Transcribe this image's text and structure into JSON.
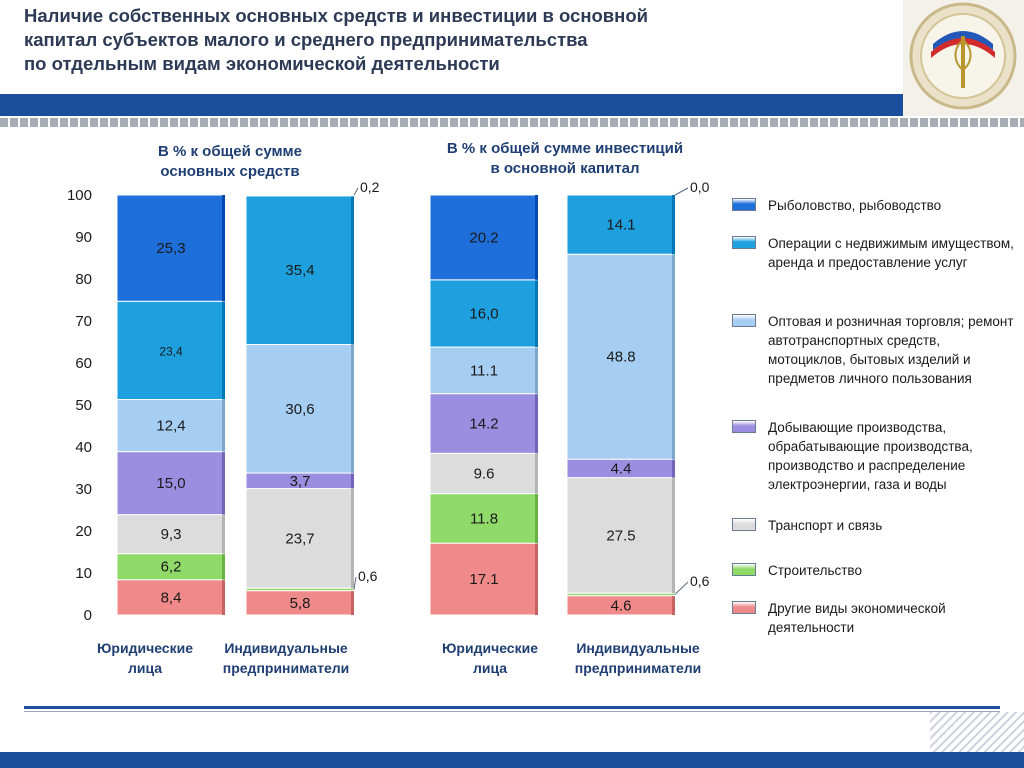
{
  "title_lines": [
    "Наличие собственных основных средств и инвестиции в основной",
    "капитал субъектов малого и среднего предпринимательства",
    "по отдельным видам экономической деятельности"
  ],
  "subtitles": {
    "assets": [
      "В % к общей сумме",
      "основных средств"
    ],
    "investments": [
      "В % к общей сумме инвестиций",
      "в основной капитал"
    ]
  },
  "logo": {
    "icon": "emblem-icon"
  },
  "colors": {
    "fishing": "#1e6fd9",
    "realestate": "#1ea0df",
    "trade": "#a6cdf2",
    "industry": "#9b8ee0",
    "transport": "#dcdcdc",
    "construction": "#8fda68",
    "other": "#f08a8a"
  },
  "chart_data": {
    "type": "bar",
    "stacked": true,
    "ylim": [
      0,
      100
    ],
    "yticks": [
      "0",
      "10",
      "20",
      "30",
      "40",
      "50",
      "60",
      "70",
      "80",
      "90",
      "100"
    ],
    "categories": [
      {
        "group": "assets",
        "label": [
          "Юридические",
          "лица"
        ]
      },
      {
        "group": "assets",
        "label": [
          "Индивидуальные",
          "предприниматели"
        ]
      },
      {
        "group": "investments",
        "label": [
          "Юридические",
          "лица"
        ]
      },
      {
        "group": "investments",
        "label": [
          "Индивидуальные",
          "предприниматели"
        ]
      }
    ],
    "series": [
      {
        "key": "other",
        "name": "Другие виды экономической деятельности",
        "values": [
          8.4,
          5.8,
          17.1,
          4.6
        ],
        "labels": [
          "8,4",
          "5,8",
          "17.1",
          "4.6"
        ]
      },
      {
        "key": "construction",
        "name": "Строительство",
        "values": [
          6.2,
          0.6,
          11.8,
          0.6
        ],
        "labels": [
          "6,2",
          "0,6",
          "11.8",
          "0,6"
        ]
      },
      {
        "key": "transport",
        "name": "Транспорт и связь",
        "values": [
          9.3,
          23.7,
          9.6,
          27.5
        ],
        "labels": [
          "9,3",
          "23,7",
          "9.6",
          "27.5"
        ]
      },
      {
        "key": "industry",
        "name": "Добывающие производства, обрабатывающие производства, производство и распределение электроэнергии, газа и воды",
        "values": [
          15.0,
          3.7,
          14.2,
          4.4
        ],
        "labels": [
          "15,0",
          "3,7",
          "14.2",
          "4.4"
        ]
      },
      {
        "key": "trade",
        "name": "Оптовая и розничная торговля; ремонт автотранспортных средств, мотоциклов, бытовых изделий и предметов личного пользования",
        "values": [
          12.4,
          30.6,
          11.1,
          48.8
        ],
        "labels": [
          "12,4",
          "30,6",
          "11.1",
          "48.8"
        ]
      },
      {
        "key": "realestate",
        "name": "Операции с недвижимым имуществом, аренда и предоставление услуг",
        "values": [
          23.4,
          35.4,
          16.0,
          14.1
        ],
        "labels": [
          "23,4",
          "35,4",
          "16,0",
          "14.1"
        ]
      },
      {
        "key": "fishing",
        "name": "Рыболовство, рыбоводство",
        "values": [
          25.3,
          0.2,
          20.2,
          0.0
        ],
        "labels": [
          "25,3",
          "0,2",
          "20.2",
          "0,0"
        ]
      }
    ],
    "legend_order": [
      "fishing",
      "realestate",
      "trade",
      "industry",
      "transport",
      "construction",
      "other"
    ],
    "legend_position": "right"
  }
}
